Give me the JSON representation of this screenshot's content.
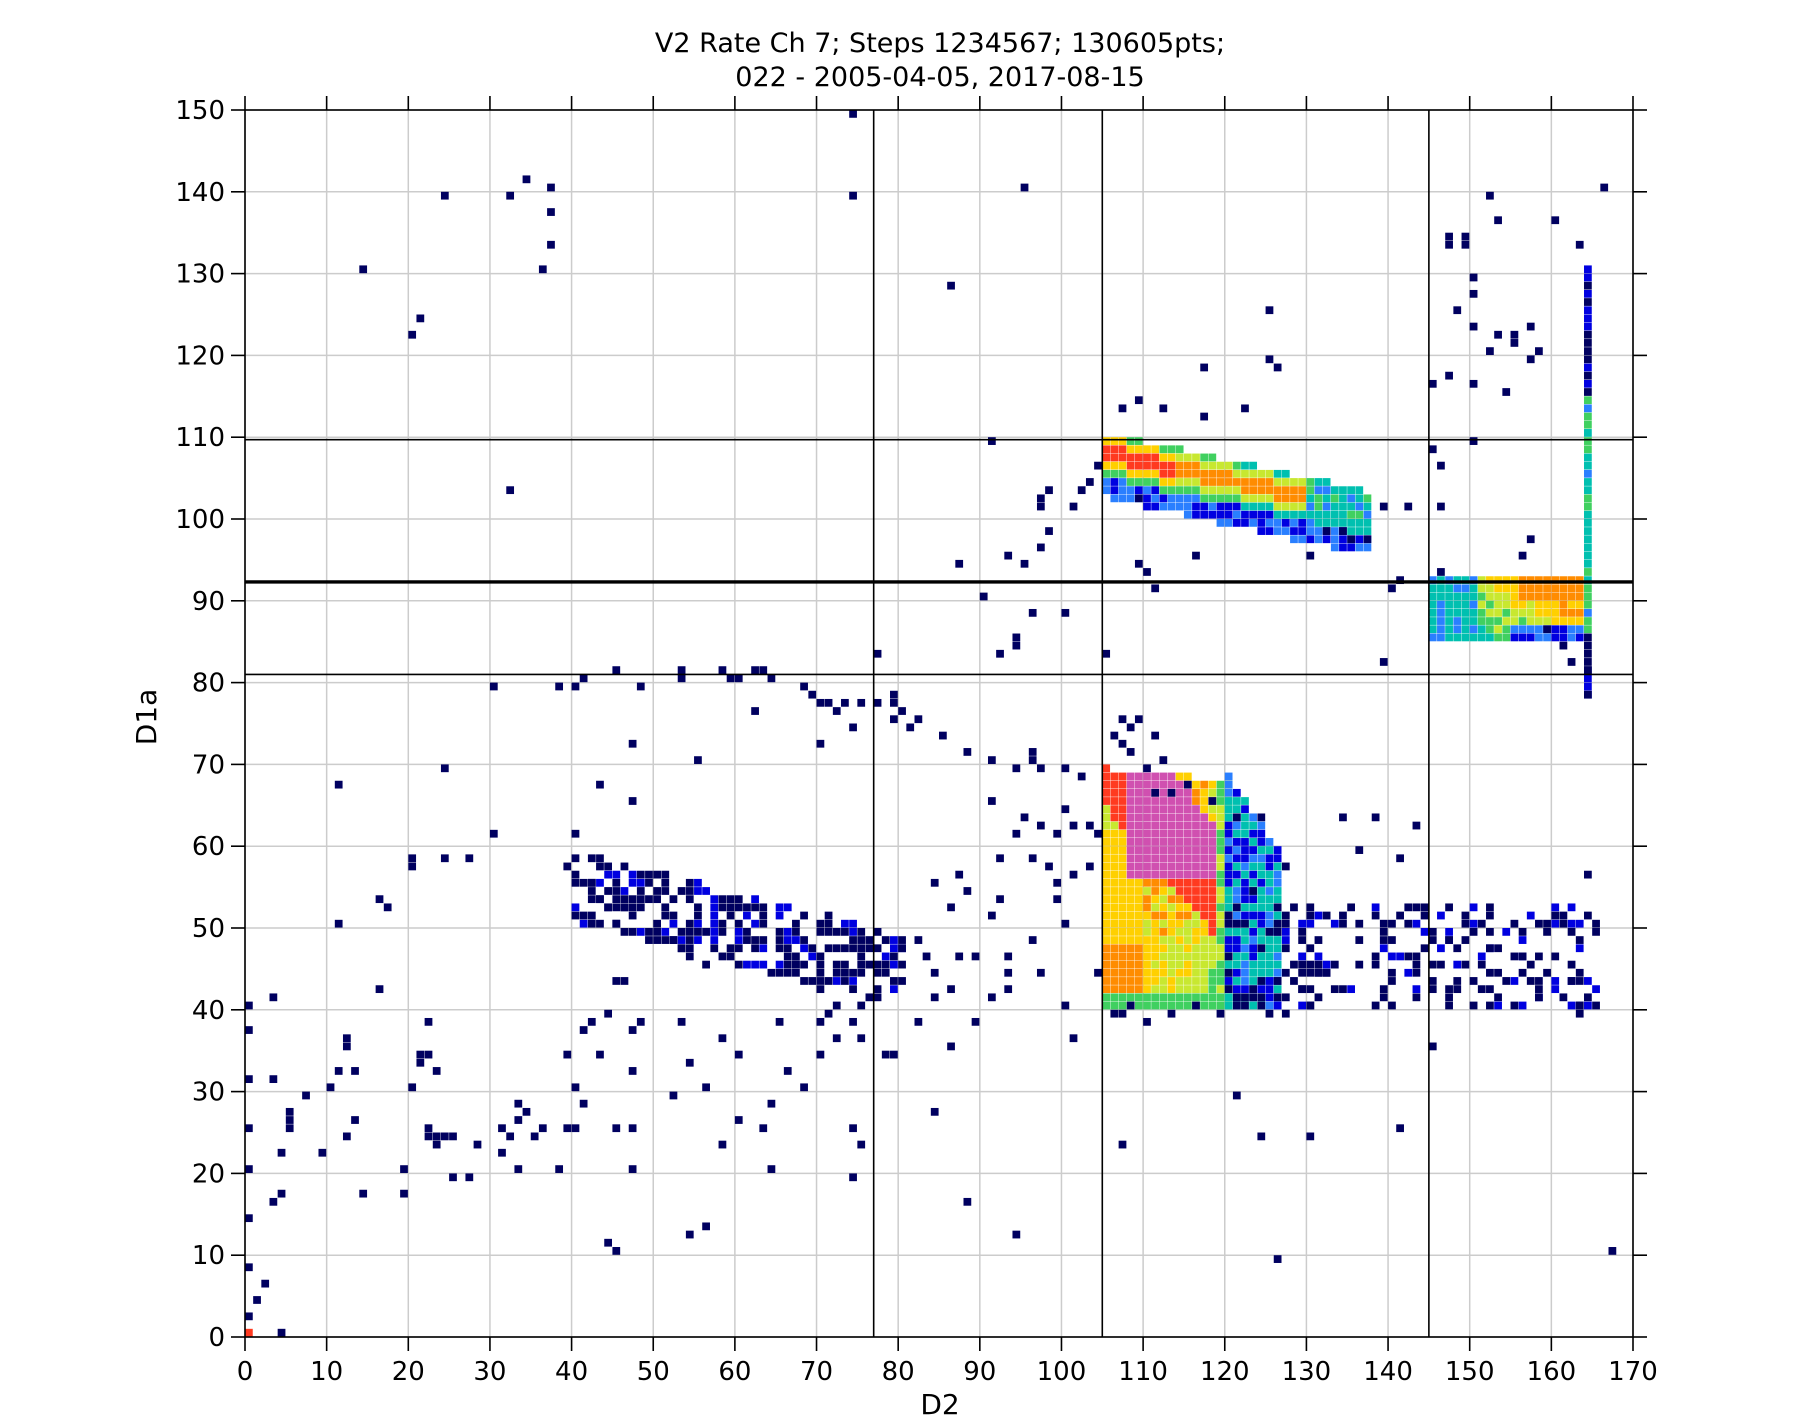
{
  "chart_data": {
    "type": "heatmap",
    "title": [
      "V2 Rate Ch 7; Steps 1234567; 130605pts;",
      "022 - 2005-04-05, 2017-08-15"
    ],
    "xlabel": "D2",
    "ylabel": "D1a",
    "xlim": [
      0,
      170
    ],
    "ylim": [
      0,
      150
    ],
    "xticks": [
      0,
      10,
      20,
      30,
      40,
      50,
      60,
      70,
      80,
      90,
      100,
      110,
      120,
      130,
      140,
      150,
      160,
      170
    ],
    "yticks": [
      0,
      10,
      20,
      30,
      40,
      50,
      60,
      70,
      80,
      90,
      100,
      110,
      120,
      130,
      140,
      150
    ],
    "grid": true,
    "colormap": [
      "#000060",
      "#0000e0",
      "#2a7fff",
      "#00c0b0",
      "#40d060",
      "#c8e830",
      "#ffd000",
      "#ff8c00",
      "#ff3a20",
      "#d050b0"
    ],
    "reference_lines": {
      "vertical": [
        77,
        105,
        145
      ],
      "horizontal": [
        81,
        92.3,
        109.7
      ]
    },
    "dense_regions": [
      {
        "name": "upper-band",
        "x": [
          105,
          137
        ],
        "y_start": [
          109,
          102
        ],
        "y_end": [
          106,
          99
        ],
        "peak": 8
      },
      {
        "name": "right-island",
        "x": [
          145,
          163
        ],
        "y": [
          85,
          92
        ],
        "peak": 7
      },
      {
        "name": "main-blob",
        "x": [
          105,
          120
        ],
        "y": [
          40,
          69
        ],
        "peak": 9
      },
      {
        "name": "low-ridge",
        "x": [
          40,
          80
        ],
        "y": [
          42,
          58
        ],
        "peak": 2
      },
      {
        "name": "right-tail",
        "x": [
          120,
          165
        ],
        "y": [
          40,
          52
        ],
        "peak": 2
      },
      {
        "name": "right-edge-column",
        "x": [
          164,
          166
        ],
        "y": [
          78,
          130
        ],
        "peak": 4
      }
    ],
    "scatter_points": [
      [
        74,
        149
      ],
      [
        74,
        139
      ],
      [
        24,
        139
      ],
      [
        32,
        139
      ],
      [
        34,
        141
      ],
      [
        37,
        140
      ],
      [
        37,
        137
      ],
      [
        37,
        133
      ],
      [
        14,
        130
      ],
      [
        36,
        130
      ],
      [
        21,
        124
      ],
      [
        20,
        122
      ],
      [
        86,
        128
      ],
      [
        95,
        140
      ],
      [
        125,
        125
      ],
      [
        117,
        118
      ],
      [
        125,
        119
      ],
      [
        126,
        118
      ],
      [
        109,
        114
      ],
      [
        107,
        113
      ],
      [
        112,
        113
      ],
      [
        117,
        112
      ],
      [
        122,
        113
      ],
      [
        32,
        103
      ],
      [
        91,
        109
      ],
      [
        104,
        106
      ],
      [
        103,
        104
      ],
      [
        102,
        103
      ],
      [
        98,
        103
      ],
      [
        97,
        102
      ],
      [
        97,
        101
      ],
      [
        101,
        101
      ],
      [
        109,
        102
      ],
      [
        139,
        101
      ],
      [
        142,
        101
      ],
      [
        98,
        98
      ],
      [
        97,
        96
      ],
      [
        95,
        94
      ],
      [
        93,
        95
      ],
      [
        87,
        94
      ],
      [
        109,
        94
      ],
      [
        110,
        93
      ],
      [
        111,
        91
      ],
      [
        116,
        95
      ],
      [
        130,
        95
      ],
      [
        132,
        98
      ],
      [
        134,
        98
      ],
      [
        135,
        97
      ],
      [
        137,
        97
      ],
      [
        96,
        88
      ],
      [
        100,
        88
      ],
      [
        90,
        90
      ],
      [
        94,
        85
      ],
      [
        94,
        84
      ],
      [
        92,
        83
      ],
      [
        77,
        83
      ],
      [
        105,
        83
      ],
      [
        139,
        82
      ],
      [
        141,
        92
      ],
      [
        146,
        93
      ],
      [
        140,
        91
      ],
      [
        159,
        86
      ],
      [
        161,
        84
      ],
      [
        162,
        82
      ],
      [
        164,
        81
      ],
      [
        164,
        78
      ],
      [
        146,
        101
      ],
      [
        146,
        106
      ],
      [
        145,
        108
      ],
      [
        150,
        109
      ],
      [
        147,
        117
      ],
      [
        150,
        123
      ],
      [
        152,
        120
      ],
      [
        155,
        122
      ],
      [
        157,
        123
      ],
      [
        157,
        119
      ],
      [
        158,
        120
      ],
      [
        145,
        116
      ],
      [
        150,
        116
      ],
      [
        154,
        115
      ],
      [
        147,
        134
      ],
      [
        147,
        133
      ],
      [
        149,
        134
      ],
      [
        149,
        133
      ],
      [
        150,
        129
      ],
      [
        152,
        139
      ],
      [
        153,
        136
      ],
      [
        160,
        136
      ],
      [
        163,
        133
      ],
      [
        166,
        140
      ],
      [
        148,
        125
      ],
      [
        150,
        127
      ],
      [
        153,
        122
      ],
      [
        155,
        121
      ],
      [
        157,
        97
      ],
      [
        156,
        95
      ],
      [
        167,
        10
      ],
      [
        124,
        24
      ],
      [
        126,
        9
      ],
      [
        121,
        29
      ],
      [
        130,
        24
      ],
      [
        141,
        25
      ],
      [
        107,
        23
      ],
      [
        145,
        35
      ],
      [
        130,
        42
      ],
      [
        134,
        63
      ],
      [
        138,
        63
      ],
      [
        143,
        62
      ],
      [
        141,
        58
      ],
      [
        136,
        59
      ],
      [
        147,
        52
      ],
      [
        151,
        42
      ],
      [
        155,
        50
      ],
      [
        101,
        36
      ],
      [
        88,
        16
      ],
      [
        94,
        12
      ],
      [
        84,
        27
      ],
      [
        79,
        34
      ],
      [
        78,
        34
      ],
      [
        82,
        38
      ],
      [
        86,
        35
      ],
      [
        89,
        38
      ],
      [
        44,
        11
      ],
      [
        45,
        10
      ],
      [
        54,
        12
      ],
      [
        56,
        13
      ],
      [
        74,
        19
      ],
      [
        75,
        23
      ],
      [
        74,
        25
      ],
      [
        64,
        20
      ],
      [
        58,
        23
      ],
      [
        60,
        26
      ],
      [
        63,
        25
      ],
      [
        64,
        28
      ],
      [
        66,
        32
      ],
      [
        68,
        30
      ],
      [
        70,
        34
      ],
      [
        72,
        36
      ],
      [
        75,
        36
      ],
      [
        74,
        38
      ],
      [
        70,
        38
      ],
      [
        65,
        38
      ],
      [
        60,
        34
      ],
      [
        58,
        36
      ],
      [
        56,
        30
      ],
      [
        54,
        33
      ],
      [
        53,
        38
      ],
      [
        52,
        29
      ],
      [
        47,
        25
      ],
      [
        47,
        20
      ],
      [
        45,
        25
      ],
      [
        41,
        28
      ],
      [
        40,
        30
      ],
      [
        41,
        37
      ],
      [
        42,
        38
      ],
      [
        43,
        34
      ],
      [
        44,
        39
      ],
      [
        47,
        32
      ],
      [
        47,
        37
      ],
      [
        48,
        38
      ],
      [
        38,
        20
      ],
      [
        36,
        25
      ],
      [
        35,
        24
      ],
      [
        32,
        24
      ],
      [
        31,
        25
      ],
      [
        33,
        26
      ],
      [
        33,
        28
      ],
      [
        34,
        27
      ],
      [
        33,
        20
      ],
      [
        31,
        22
      ],
      [
        28,
        23
      ],
      [
        27,
        19
      ],
      [
        25,
        19
      ],
      [
        25,
        24
      ],
      [
        24,
        24
      ],
      [
        23,
        24
      ],
      [
        23,
        23
      ],
      [
        22,
        25
      ],
      [
        22,
        24
      ],
      [
        20,
        30
      ],
      [
        21,
        33
      ],
      [
        22,
        34
      ],
      [
        21,
        34
      ],
      [
        23,
        32
      ],
      [
        22,
        38
      ],
      [
        19,
        20
      ],
      [
        19,
        17
      ],
      [
        14,
        17
      ],
      [
        13,
        26
      ],
      [
        12,
        24
      ],
      [
        11,
        32
      ],
      [
        12,
        35
      ],
      [
        12,
        36
      ],
      [
        13,
        32
      ],
      [
        10,
        30
      ],
      [
        9,
        22
      ],
      [
        7,
        29
      ],
      [
        5,
        25
      ],
      [
        5,
        26
      ],
      [
        5,
        27
      ],
      [
        4,
        22
      ],
      [
        3,
        31
      ],
      [
        3,
        16
      ],
      [
        4,
        17
      ],
      [
        2,
        6
      ],
      [
        1,
        4
      ],
      [
        0,
        2
      ],
      [
        0,
        8
      ],
      [
        0,
        14
      ],
      [
        0,
        20
      ],
      [
        0,
        25
      ],
      [
        0,
        31
      ],
      [
        0,
        37
      ],
      [
        0,
        40
      ],
      [
        4,
        0
      ],
      [
        3,
        41
      ],
      [
        16,
        42
      ],
      [
        11,
        50
      ],
      [
        16,
        53
      ],
      [
        17,
        52
      ],
      [
        11,
        67
      ],
      [
        24,
        69
      ],
      [
        20,
        57
      ],
      [
        20,
        58
      ],
      [
        24,
        58
      ],
      [
        27,
        58
      ],
      [
        30,
        61
      ],
      [
        30,
        79
      ],
      [
        40,
        79
      ],
      [
        41,
        80
      ],
      [
        38,
        79
      ],
      [
        45,
        81
      ],
      [
        48,
        79
      ],
      [
        53,
        81
      ],
      [
        53,
        80
      ],
      [
        58,
        81
      ],
      [
        59,
        80
      ],
      [
        60,
        80
      ],
      [
        62,
        81
      ],
      [
        63,
        81
      ],
      [
        64,
        80
      ],
      [
        62,
        76
      ],
      [
        68,
        79
      ],
      [
        69,
        78
      ],
      [
        70,
        77
      ],
      [
        71,
        77
      ],
      [
        72,
        76
      ],
      [
        73,
        77
      ],
      [
        75,
        77
      ],
      [
        77,
        77
      ],
      [
        79,
        77
      ],
      [
        79,
        78
      ],
      [
        80,
        76
      ],
      [
        81,
        74
      ],
      [
        74,
        74
      ],
      [
        79,
        75
      ],
      [
        82,
        75
      ],
      [
        85,
        73
      ],
      [
        88,
        71
      ],
      [
        91,
        70
      ],
      [
        94,
        69
      ],
      [
        96,
        71
      ],
      [
        96,
        70
      ],
      [
        97,
        69
      ],
      [
        100,
        69
      ],
      [
        102,
        68
      ],
      [
        100,
        64
      ],
      [
        101,
        62
      ],
      [
        103,
        62
      ],
      [
        104,
        61
      ],
      [
        99,
        61
      ],
      [
        97,
        62
      ],
      [
        95,
        63
      ],
      [
        91,
        65
      ],
      [
        94,
        61
      ],
      [
        92,
        58
      ],
      [
        96,
        58
      ],
      [
        98,
        57
      ],
      [
        103,
        57
      ],
      [
        101,
        56
      ],
      [
        99,
        55
      ],
      [
        99,
        53
      ],
      [
        100,
        50
      ],
      [
        96,
        48
      ],
      [
        97,
        44
      ],
      [
        100,
        40
      ],
      [
        104,
        44
      ],
      [
        91,
        51
      ],
      [
        92,
        53
      ],
      [
        86,
        52
      ],
      [
        84,
        55
      ],
      [
        87,
        56
      ],
      [
        88,
        54
      ],
      [
        93,
        46
      ],
      [
        93,
        44
      ],
      [
        93,
        42
      ],
      [
        91,
        41
      ],
      [
        89,
        46
      ],
      [
        87,
        46
      ],
      [
        86,
        42
      ],
      [
        84,
        41
      ],
      [
        84,
        44
      ],
      [
        83,
        46
      ],
      [
        82,
        48
      ],
      [
        80,
        47
      ],
      [
        78,
        44
      ],
      [
        76,
        41
      ],
      [
        75,
        40
      ],
      [
        72,
        40
      ],
      [
        71,
        39
      ],
      [
        70,
        42
      ],
      [
        68,
        43
      ],
      [
        67,
        45
      ],
      [
        66,
        45
      ],
      [
        64,
        44
      ],
      [
        60,
        45
      ],
      [
        58,
        46
      ],
      [
        56,
        45
      ],
      [
        54,
        46
      ],
      [
        53,
        47
      ],
      [
        52,
        48
      ],
      [
        51,
        48
      ],
      [
        50,
        49
      ],
      [
        47,
        51
      ],
      [
        46,
        52
      ],
      [
        45,
        53
      ],
      [
        44,
        52
      ],
      [
        43,
        53
      ],
      [
        42,
        55
      ],
      [
        42,
        54
      ],
      [
        40,
        56
      ],
      [
        39,
        57
      ],
      [
        40,
        58
      ],
      [
        40,
        61
      ],
      [
        43,
        67
      ],
      [
        47,
        65
      ],
      [
        47,
        72
      ],
      [
        55,
        70
      ],
      [
        70,
        72
      ],
      [
        77,
        49
      ],
      [
        45,
        50
      ],
      [
        46,
        43
      ],
      [
        45,
        43
      ],
      [
        39,
        34
      ],
      [
        39,
        25
      ],
      [
        40,
        25
      ],
      [
        130,
        40
      ],
      [
        131,
        48
      ],
      [
        132,
        51
      ],
      [
        135,
        52
      ],
      [
        136,
        50
      ],
      [
        139,
        50
      ],
      [
        140,
        48
      ],
      [
        142,
        46
      ],
      [
        145,
        45
      ],
      [
        147,
        48
      ],
      [
        149,
        45
      ],
      [
        152,
        47
      ],
      [
        154,
        43
      ],
      [
        156,
        46
      ],
      [
        158,
        41
      ],
      [
        160,
        46
      ],
      [
        162,
        43
      ],
      [
        163,
        40
      ],
      [
        163,
        39
      ],
      [
        164,
        56
      ],
      [
        132,
        44
      ],
      [
        128,
        43
      ],
      [
        126,
        41
      ],
      [
        124,
        40
      ],
      [
        122,
        50
      ],
      [
        123,
        54
      ],
      [
        127,
        57
      ],
      [
        124,
        63
      ],
      [
        121,
        63
      ],
      [
        118,
        65
      ],
      [
        115,
        67
      ],
      [
        113,
        66
      ],
      [
        111,
        66
      ],
      [
        110,
        69
      ],
      [
        108,
        71
      ],
      [
        107,
        72
      ],
      [
        106,
        73
      ],
      [
        107,
        75
      ],
      [
        108,
        74
      ],
      [
        109,
        75
      ],
      [
        111,
        73
      ],
      [
        112,
        70
      ],
      [
        110,
        38
      ],
      [
        113,
        39
      ],
      [
        108,
        40
      ],
      [
        107,
        39
      ],
      [
        106,
        39
      ],
      [
        116,
        40
      ],
      [
        119,
        39
      ],
      [
        121,
        41
      ],
      [
        125,
        39
      ],
      [
        127,
        39
      ],
      [
        129,
        42
      ],
      [
        131,
        44
      ]
    ]
  }
}
